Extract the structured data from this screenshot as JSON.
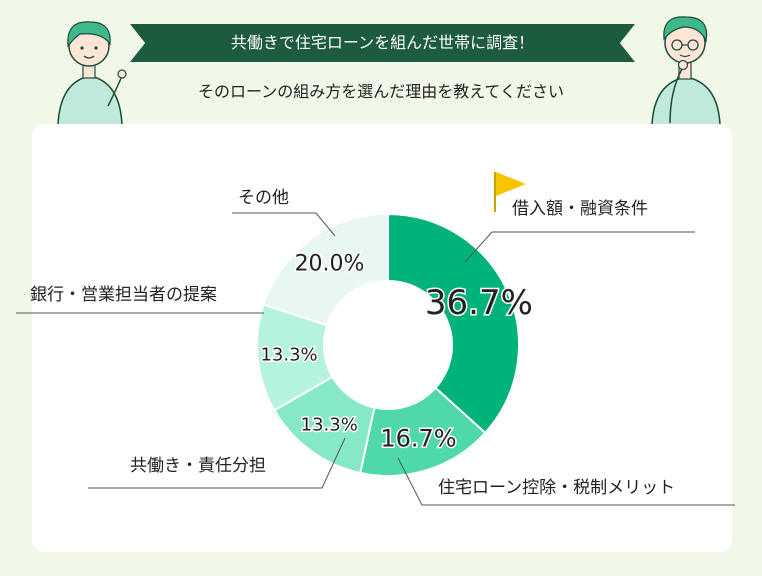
{
  "header": {
    "banner": "共働きで住宅ローンを組んだ世帯に調査！",
    "subtitle": "そのローンの組み方を選んだ理由を教えてください"
  },
  "chart_data": {
    "type": "pie",
    "donut": true,
    "labels": [
      "借入額・融資条件",
      "住宅ローン控除・税制メリット",
      "共働き・責任分担",
      "銀行・営業担当者の提案",
      "その他"
    ],
    "values": [
      36.7,
      16.7,
      13.3,
      13.3,
      20.0
    ],
    "value_labels": [
      "36.7%",
      "16.7%",
      "13.3%",
      "13.3%",
      "20.0%"
    ],
    "colors": [
      "#00b37a",
      "#4fd9a8",
      "#86e8c6",
      "#b5f3dd",
      "#e8f7f1"
    ],
    "highlight": "flag-icon on top category",
    "legend": "callout labels"
  },
  "colors": {
    "banner_bg": "#1d5b3e",
    "page_bg": "#f1f8e8",
    "flag": "#f6c400"
  }
}
